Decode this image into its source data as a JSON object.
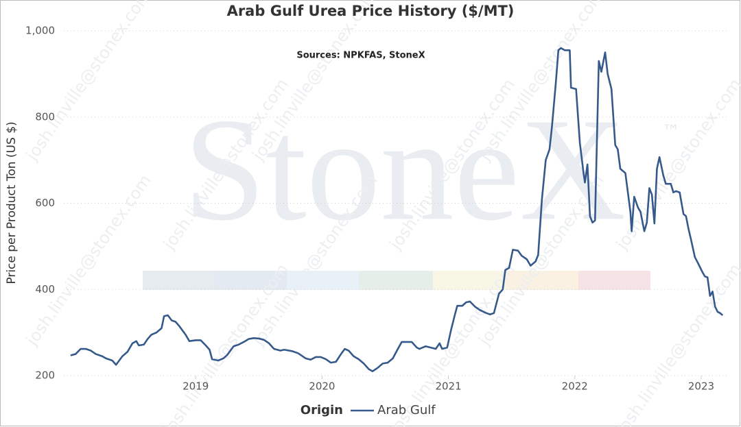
{
  "chart_data": {
    "type": "line",
    "title": "Arab Gulf Urea Price History ($/MT)",
    "subtitle": "Sources: NPKFAS, StoneX",
    "ylabel": "Price per Product Ton (US $)",
    "legend_title": "Origin",
    "watermark": "StoneX",
    "watermark_mark": "™",
    "watermark_email": "josh.linville@stonex.com",
    "xlim": [
      2018,
      2023.2
    ],
    "ylim": [
      200,
      1000
    ],
    "xticks": [
      2019,
      2020,
      2021,
      2022,
      2023
    ],
    "yticks": [
      200,
      400,
      600,
      800,
      {
        "value": 1000,
        "label": "1,000"
      }
    ],
    "grid": true,
    "x": [
      2018.01,
      2018.05,
      2018.09,
      2018.13,
      2018.17,
      2018.21,
      2018.26,
      2018.29,
      2018.34,
      2018.37,
      2018.42,
      2018.46,
      2018.5,
      2018.53,
      2018.55,
      2018.59,
      2018.62,
      2018.65,
      2018.69,
      2018.73,
      2018.75,
      2018.78,
      2018.81,
      2018.84,
      2018.87,
      2018.92,
      2018.95,
      2019.0,
      2019.04,
      2019.08,
      2019.11,
      2019.13,
      2019.18,
      2019.22,
      2019.25,
      2019.3,
      2019.34,
      2019.38,
      2019.42,
      2019.46,
      2019.5,
      2019.54,
      2019.58,
      2019.62,
      2019.67,
      2019.7,
      2019.76,
      2019.81,
      2019.87,
      2019.91,
      2019.95,
      2019.99,
      2020.03,
      2020.07,
      2020.11,
      2020.15,
      2020.18,
      2020.21,
      2020.25,
      2020.29,
      2020.33,
      2020.37,
      2020.4,
      2020.44,
      2020.48,
      2020.52,
      2020.56,
      2020.6,
      2020.63,
      2020.67,
      2020.71,
      2020.75,
      2020.77,
      2020.82,
      2020.86,
      2020.9,
      2020.93,
      2020.95,
      2020.99,
      2021.02,
      2021.05,
      2021.07,
      2021.11,
      2021.14,
      2021.17,
      2021.21,
      2021.25,
      2021.3,
      2021.33,
      2021.36,
      2021.4,
      2021.43,
      2021.45,
      2021.48,
      2021.51,
      2021.55,
      2021.58,
      2021.62,
      2021.65,
      2021.69,
      2021.71,
      2021.74,
      2021.77,
      2021.8,
      2021.82,
      2021.85,
      2021.87,
      2021.89,
      2021.92,
      2021.96,
      2021.97,
      2022.01,
      2022.04,
      2022.07,
      2022.08,
      2022.1,
      2022.12,
      2022.14,
      2022.16,
      2022.19,
      2022.21,
      2022.24,
      2022.26,
      2022.29,
      2022.32,
      2022.34,
      2022.36,
      2022.4,
      2022.44,
      2022.45,
      2022.47,
      2022.5,
      2022.52,
      2022.55,
      2022.57,
      2022.59,
      2022.61,
      2022.63,
      2022.65,
      2022.67,
      2022.7,
      2022.72,
      2022.76,
      2022.78,
      2022.8,
      2022.83,
      2022.84,
      2022.86,
      2022.88,
      2022.9,
      2022.92,
      2022.95,
      2022.98,
      2023.01,
      2023.03,
      2023.05,
      2023.07,
      2023.09,
      2023.11,
      2023.13,
      2023.15,
      2023.17
    ],
    "series": [
      {
        "name": "Arab Gulf",
        "color": "#34598a",
        "values": [
          247,
          250,
          262,
          262,
          258,
          250,
          245,
          240,
          235,
          225,
          245,
          255,
          275,
          280,
          270,
          272,
          285,
          295,
          300,
          310,
          338,
          340,
          328,
          325,
          315,
          295,
          280,
          282,
          282,
          270,
          260,
          238,
          235,
          240,
          248,
          268,
          272,
          278,
          285,
          287,
          286,
          283,
          275,
          262,
          258,
          260,
          257,
          252,
          240,
          237,
          243,
          243,
          238,
          230,
          232,
          250,
          262,
          258,
          245,
          238,
          228,
          215,
          210,
          218,
          228,
          230,
          240,
          262,
          278,
          278,
          278,
          265,
          262,
          268,
          265,
          262,
          275,
          262,
          265,
          305,
          340,
          362,
          362,
          370,
          372,
          360,
          352,
          345,
          342,
          345,
          390,
          400,
          445,
          450,
          492,
          490,
          478,
          470,
          455,
          465,
          480,
          610,
          700,
          725,
          780,
          880,
          955,
          960,
          955,
          955,
          868,
          865,
          740,
          668,
          648,
          690,
          570,
          555,
          560,
          930,
          905,
          950,
          900,
          865,
          735,
          725,
          680,
          670,
          580,
          535,
          615,
          590,
          580,
          535,
          555,
          635,
          620,
          553,
          680,
          707,
          665,
          645,
          645,
          625,
          628,
          625,
          608,
          575,
          570,
          540,
          515,
          475,
          458,
          440,
          430,
          428,
          385,
          395,
          360,
          348,
          345,
          340
        ]
      }
    ]
  }
}
